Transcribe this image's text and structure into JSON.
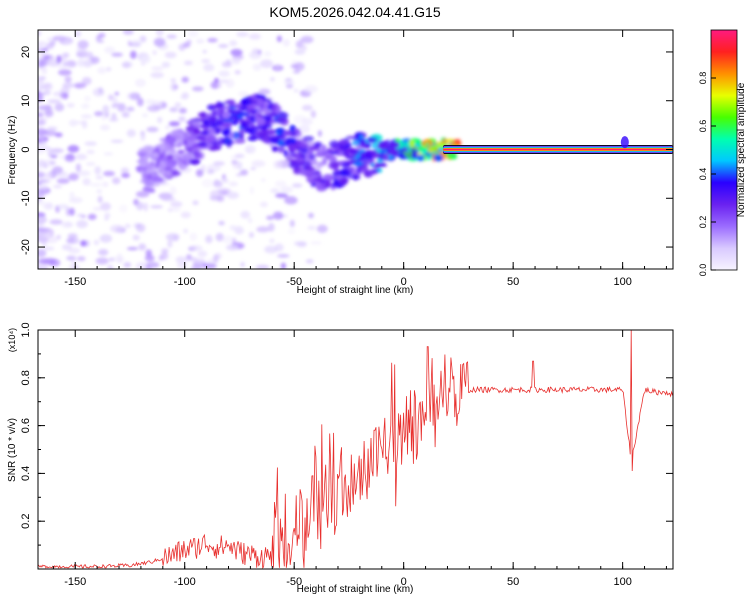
{
  "title": "KOM5.2026.042.04.41.G15",
  "colors": {
    "snr_line": "#e8302e",
    "colorbar": [
      "#f7f4ff",
      "#d9c9ff",
      "#9b6cff",
      "#6a22f0",
      "#2a00ff",
      "#00c8ff",
      "#00ffb0",
      "#48ff00",
      "#e8ff00",
      "#ff9000",
      "#ff2020",
      "#ff1a80"
    ]
  },
  "chart_data": [
    {
      "type": "heatmap",
      "panel": "top",
      "xlabel": "Height of straight line (km)",
      "ylabel": "Frequency (Hz)",
      "xlim": [
        -167,
        123
      ],
      "ylim": [
        -24.5,
        24.5
      ],
      "xticks": [
        -150,
        -100,
        -50,
        0,
        50,
        100
      ],
      "xtick_labels": [
        "-150",
        "-100",
        "-50",
        "0",
        "50",
        "100"
      ],
      "yticks": [
        -20,
        -10,
        0,
        10,
        20
      ],
      "ytick_labels": [
        "-20",
        "-10",
        "0",
        "10",
        "20"
      ],
      "ridge": {
        "x": [
          -115,
          -105,
          -95,
          -85,
          -75,
          -65,
          -55,
          -45,
          -35,
          -25,
          -15,
          -5,
          5,
          15,
          25,
          60,
          100,
          122
        ],
        "y": [
          -4,
          -1,
          2,
          5,
          6,
          7,
          3,
          -2,
          -4,
          -2,
          -1,
          0,
          0,
          0,
          0,
          0,
          0,
          0
        ],
        "amplitude": [
          0.2,
          0.25,
          0.3,
          0.35,
          0.4,
          0.35,
          0.4,
          0.35,
          0.3,
          0.4,
          0.45,
          0.55,
          0.7,
          0.85,
          0.95,
          0.95,
          0.95,
          0.95
        ]
      },
      "colorbar": {
        "label": "Normalized spectral amplitude",
        "range": [
          0.0,
          1.0
        ],
        "ticks": [
          0.0,
          0.2,
          0.4,
          0.6,
          0.8
        ],
        "tick_labels": [
          "0.0",
          "0.2",
          "0.4",
          "0.6",
          "0.8"
        ]
      }
    },
    {
      "type": "line",
      "panel": "bottom",
      "xlabel": "Height of straight line (km)",
      "ylabel": "SNR (10 * v/v)",
      "y_multiplier": "(x10⁴)",
      "xlim": [
        -167,
        123
      ],
      "ylim": [
        0.0,
        1.0
      ],
      "xticks": [
        -150,
        -100,
        -50,
        0,
        50,
        100
      ],
      "xtick_labels": [
        "-150",
        "-100",
        "-50",
        "0",
        "50",
        "100"
      ],
      "yticks": [
        0.2,
        0.4,
        0.6,
        0.8,
        1.0
      ],
      "ytick_labels": [
        "0.2",
        "0.4",
        "0.6",
        "0.8",
        "1.0"
      ],
      "series": [
        {
          "name": "SNR",
          "x": [
            -167,
            -140,
            -125,
            -115,
            -105,
            -100,
            -95,
            -90,
            -85,
            -80,
            -75,
            -70,
            -65,
            -60,
            -55,
            -50,
            -45,
            -40,
            -35,
            -30,
            -25,
            -20,
            -15,
            -10,
            -5,
            0,
            5,
            10,
            15,
            20,
            25,
            30,
            40,
            50,
            60,
            70,
            80,
            90,
            100,
            104,
            110,
            115,
            120,
            123
          ],
          "y": [
            0.01,
            0.01,
            0.015,
            0.03,
            0.06,
            0.08,
            0.09,
            0.11,
            0.09,
            0.1,
            0.07,
            0.06,
            0.05,
            0.06,
            0.08,
            0.14,
            0.22,
            0.26,
            0.3,
            0.27,
            0.38,
            0.4,
            0.45,
            0.5,
            0.55,
            0.58,
            0.6,
            0.62,
            0.66,
            0.7,
            0.73,
            0.75,
            0.75,
            0.75,
            0.75,
            0.75,
            0.75,
            0.75,
            0.75,
            0.45,
            0.75,
            0.74,
            0.74,
            0.73
          ]
        }
      ],
      "spikes": [
        {
          "x": 11,
          "y": 0.93
        },
        {
          "x": 104,
          "y": 1.0
        },
        {
          "x": 59,
          "y": 0.87
        }
      ]
    }
  ]
}
